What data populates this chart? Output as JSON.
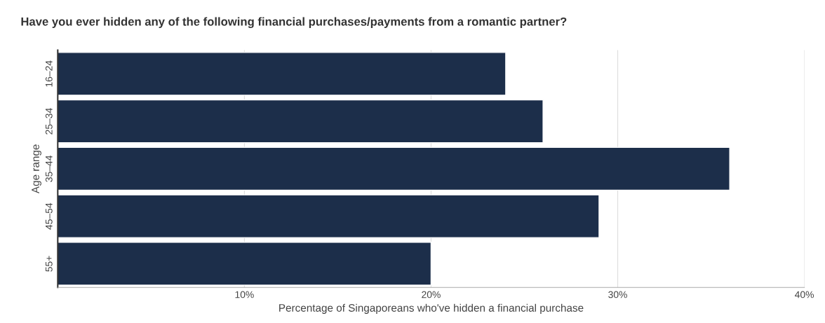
{
  "chart_data": {
    "type": "bar",
    "orientation": "horizontal",
    "title": "Have you ever hidden any of the following financial purchases/payments from a romantic partner?",
    "xlabel": "Percentage of Singaporeans who've hidden a financial purchase",
    "ylabel": "Age range",
    "categories": [
      "16–24",
      "25–34",
      "35–44",
      "45–54",
      "55+"
    ],
    "values": [
      24,
      26,
      36,
      29,
      20
    ],
    "color": "#1c2e4a",
    "xlim": [
      0,
      40
    ],
    "xticks": [
      {
        "value": 0,
        "label": null
      },
      {
        "value": 10,
        "label": "10%"
      },
      {
        "value": 20,
        "label": "20%"
      },
      {
        "value": 30,
        "label": "30%"
      },
      {
        "value": 40,
        "label": "40%"
      }
    ],
    "grid": "x",
    "legend": false
  }
}
